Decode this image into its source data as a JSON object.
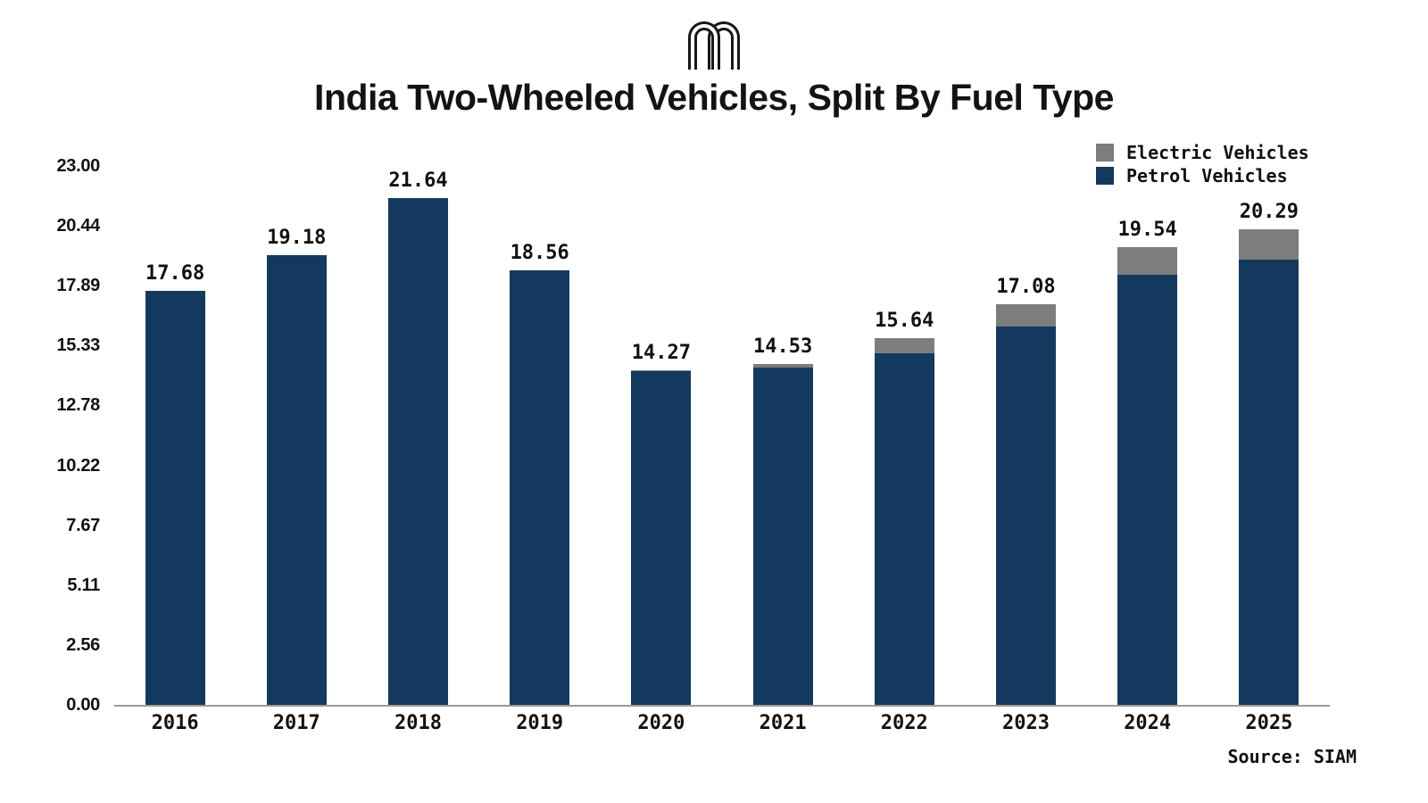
{
  "page": {
    "background": "#ffffff"
  },
  "logo": {
    "description": "double-arch m logo",
    "color": "#171717"
  },
  "title": "India Two-Wheeled Vehicles, Split By Fuel Type",
  "legend": {
    "items": [
      {
        "label": "Electric Vehicles",
        "color": "#7d7d7d"
      },
      {
        "label": "Petrol Vehicles",
        "color": "#14395e"
      }
    ]
  },
  "source": "Source: SIAM",
  "chart_data": {
    "type": "bar",
    "stacked": true,
    "title": "India Two-Wheeled Vehicles, Split By Fuel Type",
    "categories": [
      "2016",
      "2017",
      "2018",
      "2019",
      "2020",
      "2021",
      "2022",
      "2023",
      "2024",
      "2025"
    ],
    "series": [
      {
        "name": "Petrol Vehicles",
        "color": "#14395e",
        "values": [
          17.68,
          19.18,
          21.64,
          18.56,
          14.24,
          14.38,
          15.02,
          16.15,
          18.34,
          18.99
        ]
      },
      {
        "name": "Electric Vehicles",
        "color": "#7d7d7d",
        "values": [
          0,
          0,
          0,
          0,
          0.03,
          0.15,
          0.62,
          0.93,
          1.2,
          1.3
        ]
      }
    ],
    "totals": [
      17.68,
      19.18,
      21.64,
      18.56,
      14.27,
      14.53,
      15.64,
      17.08,
      19.54,
      20.29
    ],
    "total_labels": [
      "17.68",
      "19.18",
      "21.64",
      "18.56",
      "14.27",
      "14.53",
      "15.64",
      "17.08",
      "19.54",
      "20.29"
    ],
    "y_ticks": [
      "0.00",
      "2.56",
      "5.11",
      "7.67",
      "10.22",
      "12.78",
      "15.33",
      "17.89",
      "20.44",
      "23.00"
    ],
    "ylim": [
      0,
      23
    ],
    "grid": false,
    "legend_position": "top-right",
    "source": "Source: SIAM"
  }
}
